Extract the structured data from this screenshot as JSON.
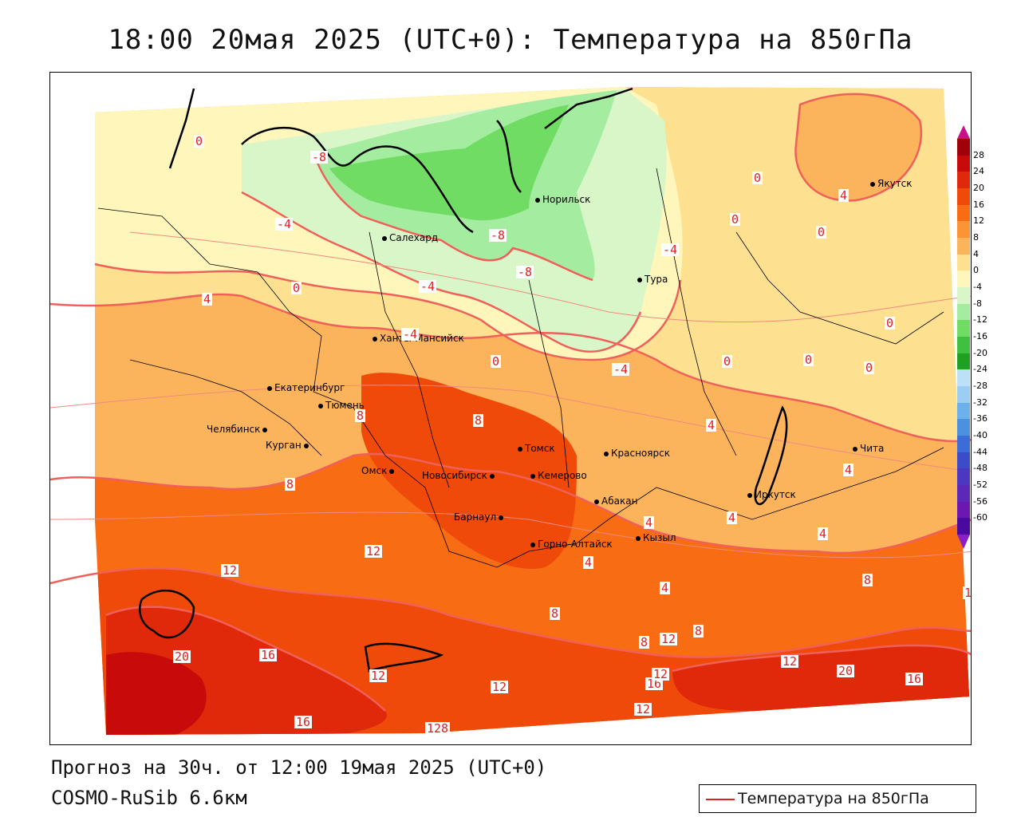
{
  "title": "18:00 20мая 2025 (UTC+0): Температура на 850гПа",
  "footer": {
    "forecast": "Прогноз на 30ч. от 12:00 19мая 2025 (UTC+0)",
    "model": "COSMO-RuSib 6.6км"
  },
  "legend": {
    "label": "Температура на 850гПа",
    "color": "#e02020"
  },
  "colorbar": {
    "ticks": [
      "28",
      "24",
      "20",
      "16",
      "12",
      "8",
      "4",
      "0",
      "-4",
      "-8",
      "-12",
      "-16",
      "-20",
      "-24",
      "-28",
      "-32",
      "-36",
      "-40",
      "-44",
      "-48",
      "-52",
      "-56",
      "-60"
    ],
    "colors": [
      "#a0000a",
      "#c80a0a",
      "#e0280a",
      "#f04a0a",
      "#f86c14",
      "#fb9434",
      "#fcb45c",
      "#fde090",
      "#fff6bc",
      "#d8f6c8",
      "#a4eca0",
      "#70dc64",
      "#40c040",
      "#20a020",
      "#bce0f8",
      "#9ccef4",
      "#6cb0ec",
      "#4c90e0",
      "#3c6cd8",
      "#3c4cc8",
      "#4c38c0",
      "#5c28b8",
      "#6c18b0",
      "#4a0aa0"
    ]
  },
  "cities": [
    {
      "name": "Якутск"
    },
    {
      "name": "Норильск"
    },
    {
      "name": "Салехард"
    },
    {
      "name": "Тура"
    },
    {
      "name": "Ханты-Мансийск"
    },
    {
      "name": "Екатеринбург"
    },
    {
      "name": "Тюмень"
    },
    {
      "name": "Челябинск"
    },
    {
      "name": "Курган"
    },
    {
      "name": "Омск"
    },
    {
      "name": "Новосибирск"
    },
    {
      "name": "Томск"
    },
    {
      "name": "Кемерово"
    },
    {
      "name": "Красноярск"
    },
    {
      "name": "Барнаул"
    },
    {
      "name": "Абакан"
    },
    {
      "name": "Горно-Алтайск"
    },
    {
      "name": "Кызыл"
    },
    {
      "name": "Иркутск"
    },
    {
      "name": "Чита"
    }
  ],
  "contour_labels": [
    "0",
    "-4",
    "-8",
    "-8",
    "-8",
    "-4",
    "4",
    "0",
    "-4",
    "0",
    "0",
    "4",
    "0",
    "0",
    "0",
    "0",
    "-4",
    "-4",
    "0",
    "0",
    "4",
    "8",
    "8",
    "8",
    "4",
    "4",
    "4",
    "4",
    "4",
    "4",
    "8",
    "12",
    "12",
    "8",
    "8",
    "12",
    "8",
    "12",
    "16",
    "20",
    "16",
    "16",
    "12",
    "12",
    "12",
    "20",
    "16",
    "12",
    "128",
    "1"
  ]
}
